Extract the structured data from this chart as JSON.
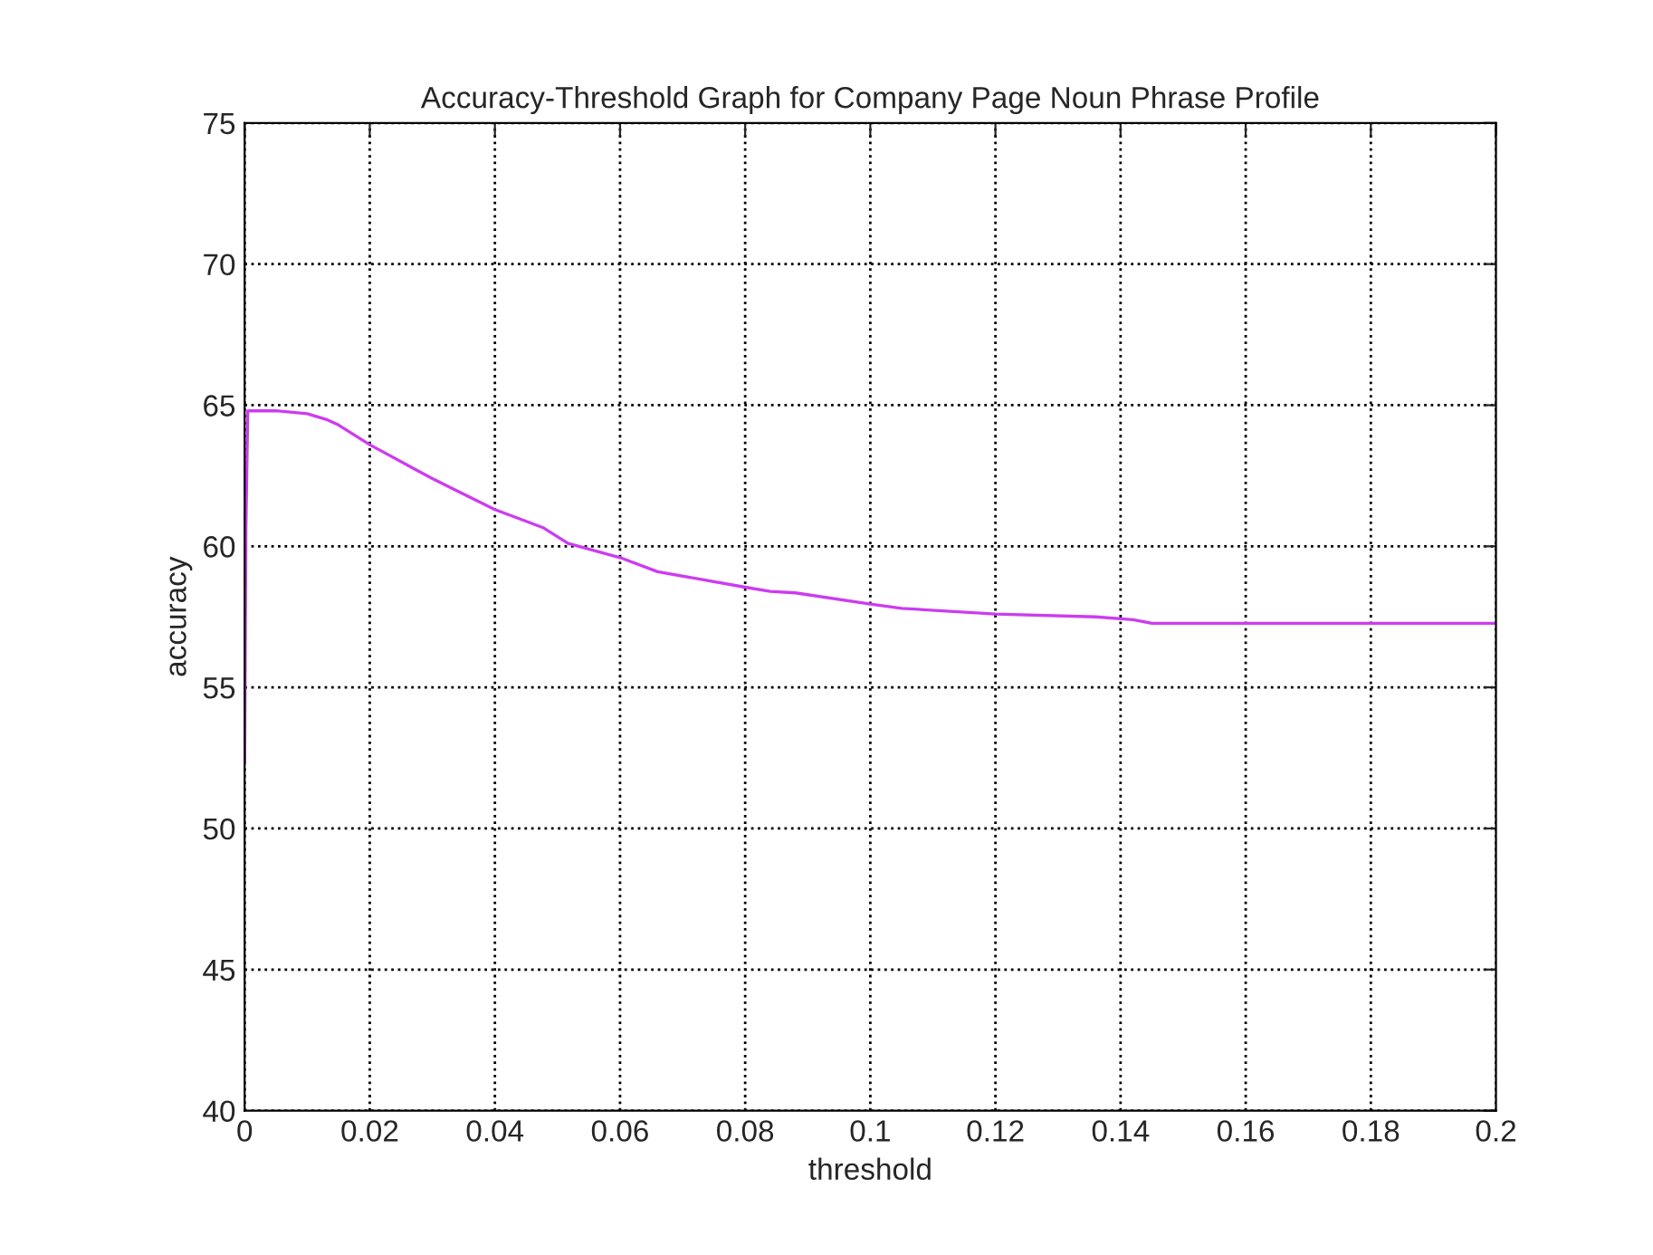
{
  "chart_data": {
    "type": "line",
    "title": "Accuracy-Threshold Graph for Company Page Noun Phrase Profile",
    "xlabel": "threshold",
    "ylabel": "accuracy",
    "x": [
      0,
      0.0002,
      0.0005,
      0.005,
      0.01,
      0.013,
      0.015,
      0.02,
      0.0275,
      0.03,
      0.04,
      0.0478,
      0.0517,
      0.06,
      0.066,
      0.08,
      0.084,
      0.088,
      0.1,
      0.105,
      0.12,
      0.136,
      0.142,
      0.145,
      0.2
    ],
    "series": [
      {
        "color": "#cc3cf0",
        "values": [
          52.3,
          60.6,
          64.8,
          64.8,
          64.7,
          64.5,
          64.3,
          63.6,
          62.7,
          62.4,
          61.3,
          60.65,
          60.1,
          59.6,
          59.1,
          58.55,
          58.4,
          58.35,
          57.95,
          57.8,
          57.6,
          57.5,
          57.4,
          57.27,
          57.27
        ]
      }
    ],
    "xlim": [
      0,
      0.2
    ],
    "xticks": [
      0,
      0.02,
      0.04,
      0.06,
      0.08,
      0.1,
      0.12,
      0.14,
      0.16,
      0.18,
      0.2
    ],
    "ylim": [
      40,
      75
    ],
    "yticks": [
      40,
      45,
      50,
      55,
      60,
      65,
      70,
      75
    ],
    "grid": true,
    "line_style": "solid",
    "marker": "none"
  }
}
